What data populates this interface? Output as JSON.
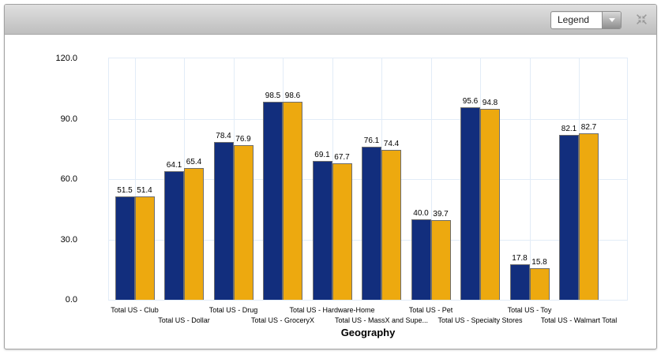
{
  "header": {
    "legend_dropdown": {
      "value": "Legend"
    }
  },
  "icons": {
    "dropdown_arrow": "chevron-down",
    "resize": "collapse-arrows",
    "icon_color": "#999999"
  },
  "colors": {
    "series1": "#122E7D",
    "series2": "#EDA90F",
    "bar_outline": "#6e6e6e",
    "gridline": "#e2ecf7",
    "header_gradient_top": "#dfdfdf",
    "header_gradient_bottom": "#bebebe"
  },
  "chart_data": {
    "type": "bar",
    "title": "",
    "xlabel": "Geography",
    "ylabel": "",
    "ylim": [
      0,
      120
    ],
    "yticks": [
      0,
      30,
      60,
      90,
      120
    ],
    "ytick_labels": [
      "0.0",
      "30.0",
      "60.0",
      "90.0",
      "120.0"
    ],
    "grid": true,
    "legend_position": "collapsed-dropdown",
    "categories": [
      "Total US - Club",
      "Total US - Dollar",
      "Total US - Drug",
      "Total US - GroceryX",
      "Total US - Hardware-Home",
      "Total US - MassX and Supe...",
      "Total US - Pet",
      "Total US - Specialty Stores",
      "Total US - Toy",
      "Total US - Walmart Total"
    ],
    "series": [
      {
        "color": "#122E7D",
        "values": [
          51.5,
          64.1,
          78.4,
          98.5,
          69.1,
          76.1,
          40.0,
          95.6,
          17.8,
          82.1
        ]
      },
      {
        "color": "#EDA90F",
        "values": [
          51.4,
          65.4,
          76.9,
          98.6,
          67.7,
          74.4,
          39.7,
          94.8,
          15.8,
          82.7
        ]
      }
    ]
  }
}
